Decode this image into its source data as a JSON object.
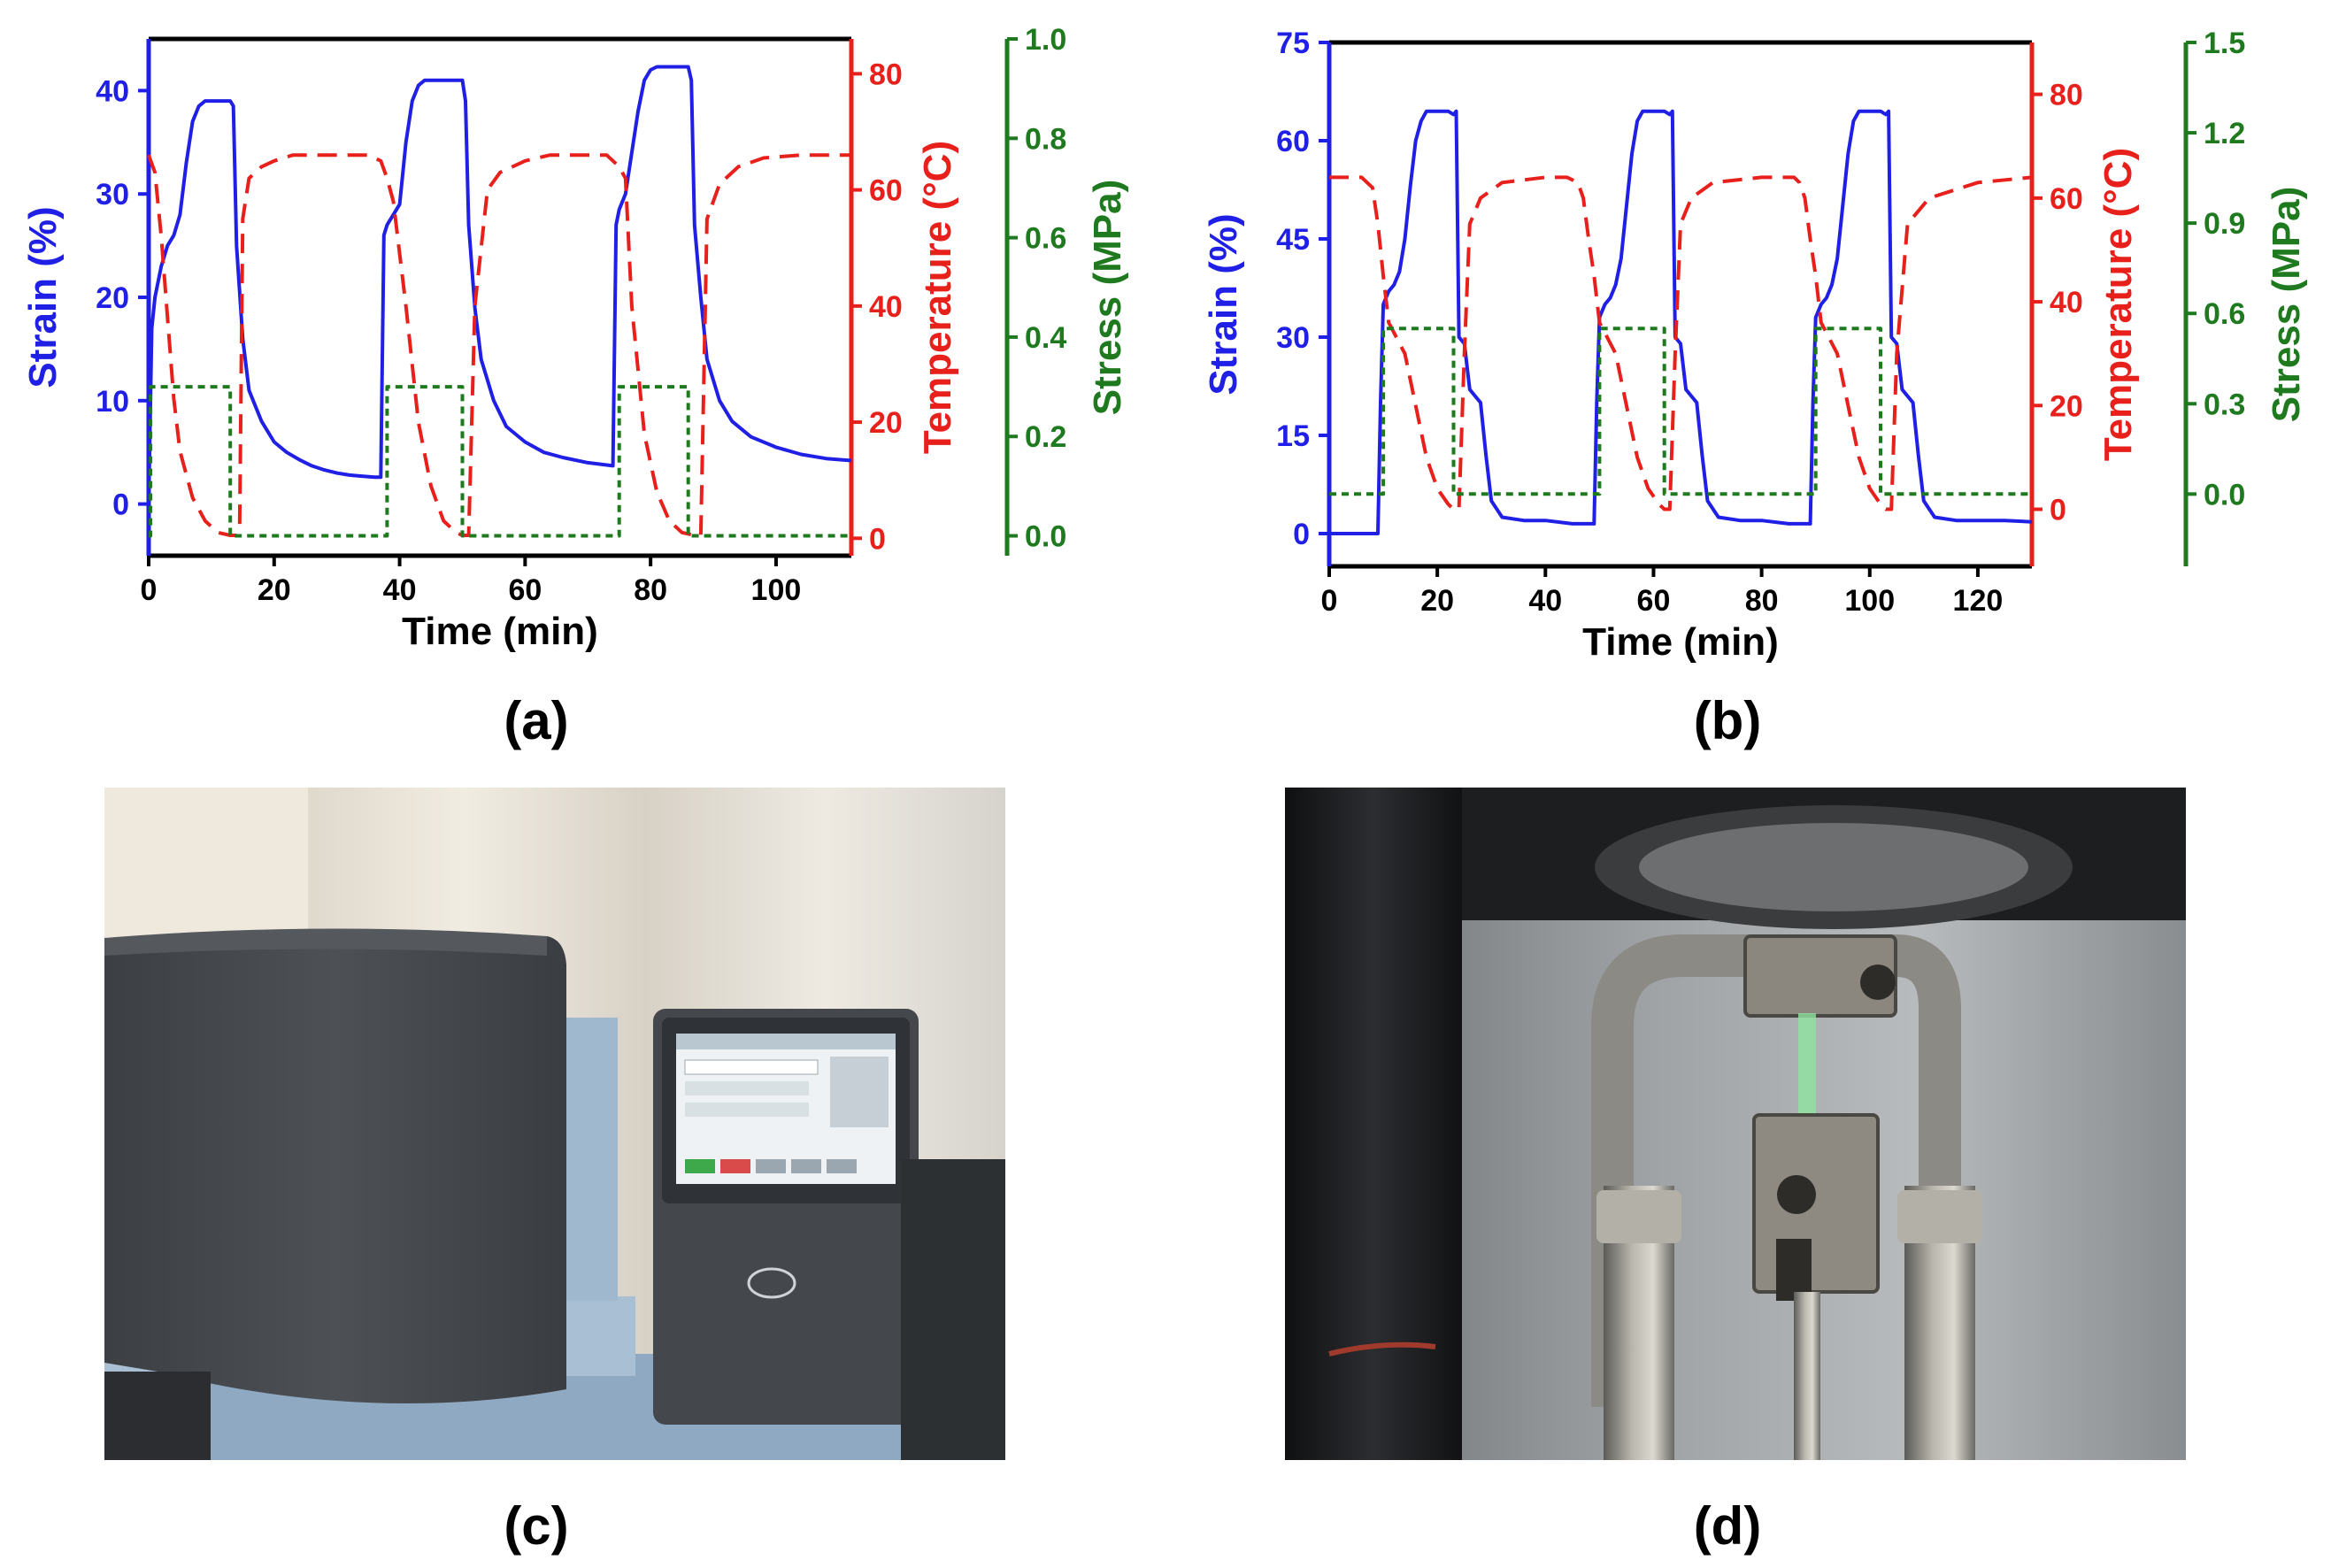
{
  "captions": {
    "a": "(a)",
    "b": "(b)",
    "c": "(c)",
    "d": "(d)"
  },
  "colors": {
    "strain": "#1f1fe6",
    "temperature": "#e8201c",
    "stress": "#1f7a1f",
    "axis": "#000000"
  },
  "chart_data": [
    {
      "id": "a",
      "type": "line",
      "xlabel": "Time (min)",
      "xlim": [
        0,
        112
      ],
      "xticks": [
        0,
        20,
        40,
        60,
        80,
        100
      ],
      "axes": {
        "strain": {
          "label": "Strain (%)",
          "lim": [
            -5,
            45
          ],
          "ticks": [
            0,
            10,
            20,
            30,
            40
          ]
        },
        "temperature": {
          "label": "Temperature (°C)",
          "lim": [
            -3,
            86
          ],
          "ticks": [
            0,
            20,
            40,
            60,
            80
          ]
        },
        "stress": {
          "label": "Stress (MPa)",
          "lim": [
            -0.04,
            1.0
          ],
          "ticks": [
            "0.0",
            "0.2",
            "0.4",
            "0.6",
            "0.8",
            "1.0"
          ]
        }
      },
      "series": [
        {
          "name": "Strain",
          "axis": "strain",
          "style": "solid",
          "x": [
            0,
            0.5,
            1,
            2,
            3,
            4,
            5,
            6,
            7,
            8,
            9,
            10,
            11,
            12,
            13,
            13.5,
            14,
            15,
            16,
            18,
            20,
            22,
            24,
            26,
            28,
            30,
            32,
            34,
            36,
            37,
            37.5,
            38,
            39,
            40,
            41,
            42,
            43,
            44,
            45,
            46,
            47,
            48,
            49,
            50,
            50.5,
            51,
            52,
            53,
            55,
            57,
            60,
            63,
            66,
            70,
            74,
            74.5,
            75,
            76,
            77,
            78,
            79,
            80,
            81,
            82,
            83,
            84,
            85,
            86,
            86.5,
            87,
            88,
            89,
            91,
            93,
            96,
            100,
            104,
            108,
            112
          ],
          "y": [
            0,
            17,
            20,
            23,
            25,
            26,
            28,
            33,
            37,
            38.5,
            39,
            39,
            39,
            39,
            39,
            38.5,
            25,
            16,
            11,
            8,
            6,
            5,
            4.3,
            3.7,
            3.3,
            3,
            2.8,
            2.7,
            2.6,
            2.6,
            26,
            27,
            28,
            29,
            35,
            39,
            40.5,
            41,
            41,
            41,
            41,
            41,
            41,
            41,
            39,
            27,
            19,
            14,
            10,
            7.5,
            6,
            5,
            4.5,
            4,
            3.7,
            27,
            28.5,
            30,
            34,
            38,
            41,
            42,
            42.3,
            42.3,
            42.3,
            42.3,
            42.3,
            42.3,
            41,
            27,
            20,
            14,
            10,
            8,
            6.5,
            5.5,
            4.8,
            4.4,
            4.2
          ]
        },
        {
          "name": "Temperature",
          "axis": "temperature",
          "style": "dashed",
          "x": [
            0,
            1,
            2,
            3,
            4,
            5,
            7,
            9,
            11,
            13,
            14,
            14.5,
            15,
            16,
            18,
            20,
            23,
            27,
            32,
            35,
            37,
            38,
            39,
            41,
            43,
            45,
            47,
            49,
            50,
            51,
            52,
            54,
            56,
            60,
            64,
            68,
            72,
            73,
            74,
            75,
            76,
            77,
            79,
            81,
            83,
            85,
            87,
            88,
            89,
            91,
            94,
            98,
            104,
            112
          ],
          "y": [
            66,
            63,
            52,
            38,
            24,
            15,
            7,
            3,
            1,
            0.5,
            0.5,
            2,
            55,
            62,
            64,
            65,
            66,
            66,
            66,
            66,
            65,
            62,
            58,
            40,
            20,
            9,
            3,
            1,
            0.5,
            0.5,
            40,
            60,
            63,
            65,
            66,
            66,
            66,
            66,
            65,
            64,
            62,
            40,
            18,
            8,
            3,
            1,
            0.5,
            0.5,
            55,
            61,
            64,
            65.5,
            66,
            66
          ]
        },
        {
          "name": "Stress",
          "axis": "stress",
          "style": "dotted",
          "x": [
            0,
            0.3,
            0.3,
            13,
            13,
            38,
            38,
            50,
            50,
            75,
            75,
            86,
            86,
            112
          ],
          "y": [
            0,
            0,
            0.3,
            0.3,
            0,
            0,
            0.3,
            0.3,
            0,
            0,
            0.3,
            0.3,
            0,
            0
          ]
        }
      ]
    },
    {
      "id": "b",
      "type": "line",
      "xlabel": "Time (min)",
      "xlim": [
        0,
        130
      ],
      "xticks": [
        0,
        20,
        40,
        60,
        80,
        100,
        120
      ],
      "axes": {
        "strain": {
          "label": "Strain (%)",
          "lim": [
            -5,
            75
          ],
          "ticks": [
            0,
            15,
            30,
            45,
            60,
            75
          ]
        },
        "temperature": {
          "label": "Temperature (°C)",
          "lim": [
            -11,
            90
          ],
          "ticks": [
            0,
            20,
            40,
            60,
            80
          ]
        },
        "stress": {
          "label": "Stress (MPa)",
          "lim": [
            -0.24,
            1.5
          ],
          "ticks": [
            "0.0",
            "0.3",
            "0.6",
            "0.9",
            "1.2",
            "1.5"
          ]
        }
      },
      "series": [
        {
          "name": "Strain",
          "axis": "strain",
          "style": "solid",
          "x": [
            0,
            5,
            9,
            9.5,
            10,
            11,
            12,
            13,
            14,
            15,
            16,
            17,
            18,
            20,
            22,
            23,
            23.5,
            24,
            25,
            26,
            27,
            28,
            29,
            30,
            32,
            36,
            40,
            45,
            49,
            49.5,
            50,
            51,
            52,
            53,
            54,
            55,
            56,
            57,
            58,
            60,
            62,
            63,
            63.5,
            64,
            65,
            66,
            67,
            68,
            69,
            70,
            72,
            76,
            80,
            85,
            89,
            89.5,
            90,
            91,
            92,
            93,
            94,
            95,
            96,
            97,
            98,
            100,
            102,
            103,
            103.5,
            104,
            105,
            106,
            107,
            108,
            109,
            110,
            112,
            116,
            120,
            125,
            130
          ],
          "y": [
            0,
            0,
            0,
            20,
            35,
            37,
            38,
            40,
            45,
            53,
            60,
            63,
            64.5,
            64.5,
            64.5,
            64,
            64.5,
            30,
            29,
            22,
            21,
            20,
            12,
            5,
            2.5,
            2,
            2,
            1.5,
            1.5,
            20,
            33,
            35,
            36,
            38,
            42,
            50,
            58,
            63,
            64.5,
            64.5,
            64.5,
            64,
            64.5,
            30,
            29,
            22,
            21,
            20,
            12,
            5,
            2.5,
            2,
            2,
            1.5,
            1.5,
            20,
            33,
            35,
            36,
            38,
            42,
            50,
            58,
            63,
            64.5,
            64.5,
            64.5,
            64,
            64.5,
            30,
            29,
            22,
            21,
            20,
            12,
            5,
            2.5,
            2,
            2,
            2,
            1.8
          ]
        },
        {
          "name": "Temperature",
          "axis": "temperature",
          "style": "dashed",
          "x": [
            0,
            6,
            8,
            9,
            10,
            11,
            12,
            13,
            14,
            16,
            18,
            20,
            22,
            23,
            24,
            25,
            26,
            28,
            32,
            40,
            44,
            46,
            47,
            48,
            49,
            50,
            51,
            52,
            53,
            55,
            57,
            59,
            61,
            62,
            63,
            64,
            65,
            67,
            71,
            80,
            86,
            87,
            88,
            89,
            90,
            91,
            92,
            93,
            94,
            96,
            98,
            100,
            102,
            103,
            104,
            105,
            107,
            111,
            120,
            130
          ],
          "y": [
            64,
            64,
            62,
            55,
            45,
            36,
            34,
            32,
            30,
            20,
            10,
            4,
            1,
            0,
            0,
            30,
            55,
            60,
            63,
            64,
            64,
            63,
            60,
            52,
            45,
            36,
            34,
            32,
            30,
            20,
            10,
            4,
            1,
            0,
            0,
            30,
            55,
            60,
            63,
            64,
            64,
            63,
            60,
            52,
            45,
            36,
            34,
            32,
            30,
            20,
            10,
            4,
            1,
            0,
            0,
            30,
            55,
            60,
            63,
            64
          ]
        },
        {
          "name": "Stress",
          "axis": "stress",
          "style": "dotted",
          "x": [
            0,
            10,
            10,
            21,
            21,
            23,
            23,
            50,
            50,
            61,
            61,
            62,
            62,
            90,
            90,
            101,
            101,
            102,
            102,
            130
          ],
          "y": [
            0,
            0,
            0.55,
            0.55,
            0.55,
            0.55,
            0,
            0,
            0.55,
            0.55,
            0.55,
            0.55,
            0,
            0,
            0.55,
            0.55,
            0.55,
            0.55,
            0,
            0
          ]
        }
      ]
    }
  ],
  "photos": {
    "c": {
      "subject": "thermal-analysis-instrument",
      "screen_rows": 4,
      "screen_buttons": 5
    },
    "d": {
      "subject": "tensile-clamp-fixture"
    }
  }
}
